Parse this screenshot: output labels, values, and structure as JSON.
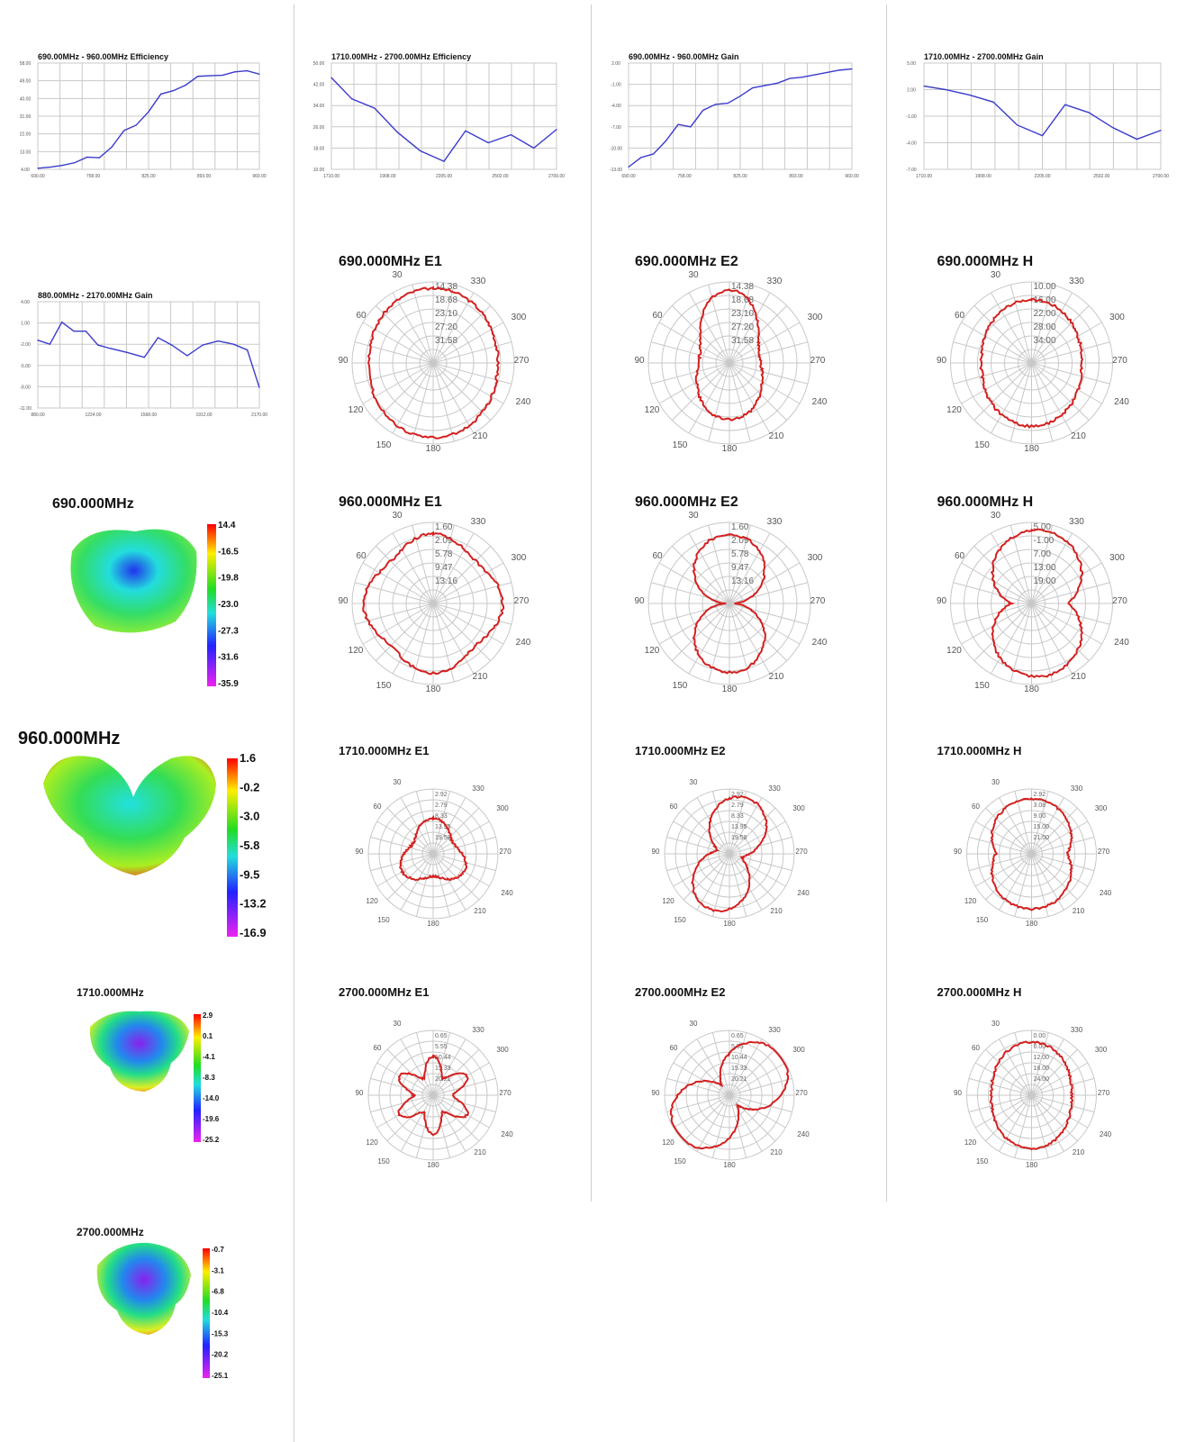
{
  "charts": [
    {
      "type": "line",
      "title": "690.00MHz - 960.00MHz Efficiency",
      "x": [
        690,
        705,
        720,
        735,
        750,
        765,
        780,
        795,
        810,
        825,
        840,
        855,
        870,
        885,
        900,
        915,
        930,
        945,
        960
      ],
      "values": [
        10.5,
        11.0,
        11.8,
        13.0,
        15.5,
        15.2,
        20.0,
        27.5,
        30.0,
        36.0,
        44.0,
        45.5,
        48.0,
        52.0,
        52.3,
        52.5,
        54.0,
        54.5,
        53.0
      ],
      "ylim": [
        10,
        58
      ],
      "yticks": [
        "58.00",
        "49.00",
        "40.00",
        "31.00",
        "22.00",
        "13.00",
        "4.00"
      ],
      "xticks": [
        "690.00",
        "758.00",
        "825.00",
        "893.00",
        "960.00"
      ],
      "ylim_labels": [
        10,
        58
      ]
    },
    {
      "type": "line",
      "title": "1710.00MHz - 2700.00MHz Efficiency",
      "x": [
        1710,
        1800,
        1900,
        2000,
        2100,
        2205,
        2300,
        2400,
        2500,
        2600,
        2700
      ],
      "values": [
        44.5,
        36.5,
        33.0,
        24.0,
        17.0,
        13.0,
        24.5,
        20.0,
        23.0,
        18.0,
        25.0
      ],
      "ylim": [
        10,
        50
      ],
      "yticks": [
        "50.00",
        "42.00",
        "34.00",
        "26.00",
        "18.00",
        "10.00"
      ],
      "xticks": [
        "1710.00",
        "1908.00",
        "2205.00",
        "2502.00",
        "2700.00"
      ]
    },
    {
      "type": "line",
      "title": "690.00MHz - 960.00MHz Gain",
      "x": [
        690,
        705,
        720,
        735,
        750,
        765,
        780,
        795,
        810,
        825,
        840,
        855,
        870,
        885,
        900,
        915,
        930,
        945,
        960
      ],
      "values": [
        -9.8,
        -9.0,
        -8.7,
        -7.6,
        -6.2,
        -6.4,
        -5.0,
        -4.5,
        -4.4,
        -3.8,
        -3.1,
        -2.9,
        -2.7,
        -2.3,
        -2.2,
        -2.0,
        -1.8,
        -1.6,
        -1.5
      ],
      "ylim": [
        -10,
        -1
      ],
      "yticks": [
        "2.00",
        "-1.00",
        "-4.00",
        "-7.00",
        "-10.00",
        "-13.00"
      ],
      "xticks": [
        "690.00",
        "758.00",
        "825.00",
        "893.00",
        "960.00"
      ]
    },
    {
      "type": "line",
      "title": "1710.00MHz - 2700.00MHz Gain",
      "x": [
        1710,
        1800,
        1900,
        2000,
        2100,
        2205,
        2300,
        2400,
        2500,
        2600,
        2700
      ],
      "values": [
        2.4,
        2.0,
        1.4,
        0.6,
        -2.0,
        -3.2,
        0.3,
        -0.6,
        -2.3,
        -3.6,
        -2.6
      ],
      "ylim": [
        -7,
        5
      ],
      "yticks": [
        "5.00",
        "2.00",
        "-1.00",
        "-4.00",
        "-7.00"
      ],
      "xticks": [
        "1710.00",
        "1908.00",
        "2205.00",
        "2502.00",
        "2700.00"
      ]
    },
    {
      "type": "line",
      "title": "880.00MHz - 2170.00MHz Gain",
      "x": [
        880,
        950,
        1020,
        1090,
        1160,
        1230,
        1300,
        1400,
        1500,
        1580,
        1660,
        1750,
        1840,
        1930,
        2020,
        2100,
        2170
      ],
      "values": [
        -0.7,
        -1.2,
        1.5,
        0.4,
        0.4,
        -1.3,
        -1.7,
        -2.2,
        -2.8,
        -0.4,
        -1.3,
        -2.6,
        -1.3,
        -0.8,
        -1.2,
        -1.9,
        -6.5
      ],
      "ylim": [
        -9,
        4
      ],
      "yticks": [
        "4.00",
        "1.00",
        "-2.00",
        "-5.00",
        "-8.00",
        "-11.00"
      ],
      "xticks": [
        "880.00",
        "1224.00",
        "1568.00",
        "1912.00",
        "2170.00"
      ]
    }
  ],
  "polars": [
    {
      "title": "690.000MHz  E1",
      "rings": [
        "14.38",
        "18.68",
        "23.10",
        "27.20",
        "31.58"
      ]
    },
    {
      "title": "690.000MHz  E2",
      "rings": [
        "14.38",
        "18.68",
        "23.10",
        "27.20",
        "31.58"
      ]
    },
    {
      "title": "690.000MHz  H",
      "rings": [
        "10.00",
        "16.00",
        "22.00",
        "28.00",
        "34.00"
      ]
    },
    {
      "title": "960.000MHz  E1",
      "rings": [
        "1.60",
        "2.09",
        "5.78",
        "9.47",
        "13.16"
      ]
    },
    {
      "title": "960.000MHz  E2",
      "rings": [
        "1.60",
        "2.09",
        "5.78",
        "9.47",
        "13.16"
      ]
    },
    {
      "title": "960.000MHz  H",
      "rings": [
        "5.00",
        "-1.00",
        "7.00",
        "13.00",
        "19.00"
      ]
    },
    {
      "title": "1710.000MHz  E1",
      "rings": [
        "2.92",
        "2.79",
        "8.33",
        "13.95",
        "19.58"
      ]
    },
    {
      "title": "1710.000MHz  E2",
      "rings": [
        "2.92",
        "2.79",
        "8.33",
        "13.95",
        "19.58"
      ]
    },
    {
      "title": "1710.000MHz  H",
      "rings": [
        "2.92",
        "3.08",
        "9.00",
        "15.00",
        "21.00"
      ]
    },
    {
      "title": "2700.000MHz  E1",
      "rings": [
        "0.65",
        "5.55",
        "10.44",
        "15.33",
        "20.21"
      ]
    },
    {
      "title": "2700.000MHz  E2",
      "rings": [
        "0.65",
        "5.55",
        "10.44",
        "15.33",
        "20.21"
      ]
    },
    {
      "title": "2700.000MHz  H",
      "rings": [
        "0.00",
        "6.00",
        "12.00",
        "18.00",
        "24.00"
      ]
    }
  ],
  "polar_angles": [
    "30",
    "330",
    "60",
    "300",
    "90",
    "270",
    "120",
    "240",
    "150",
    "210",
    "180"
  ],
  "patterns": [
    {
      "title": "690.000MHz",
      "scale": [
        "14.4",
        "-16.5",
        "-19.8",
        "-23.0",
        "-27.3",
        "-31.6",
        "-35.9"
      ]
    },
    {
      "title": "960.000MHz",
      "scale": [
        "1.6",
        "-0.2",
        "-3.0",
        "-5.8",
        "-9.5",
        "-13.2",
        "-16.9"
      ]
    },
    {
      "title": "1710.000MHz",
      "scale": [
        "2.9",
        "0.1",
        "-4.1",
        "-8.3",
        "-14.0",
        "-19.6",
        "-25.2"
      ]
    },
    {
      "title": "2700.000MHz",
      "scale": [
        "-0.7",
        "-3.1",
        "-6.8",
        "-10.4",
        "-15.3",
        "-20.2",
        "-25.1"
      ]
    }
  ],
  "colors": {
    "line": "#3b3bcc",
    "polar": "#d42020",
    "grid": "#c8c8c8"
  }
}
